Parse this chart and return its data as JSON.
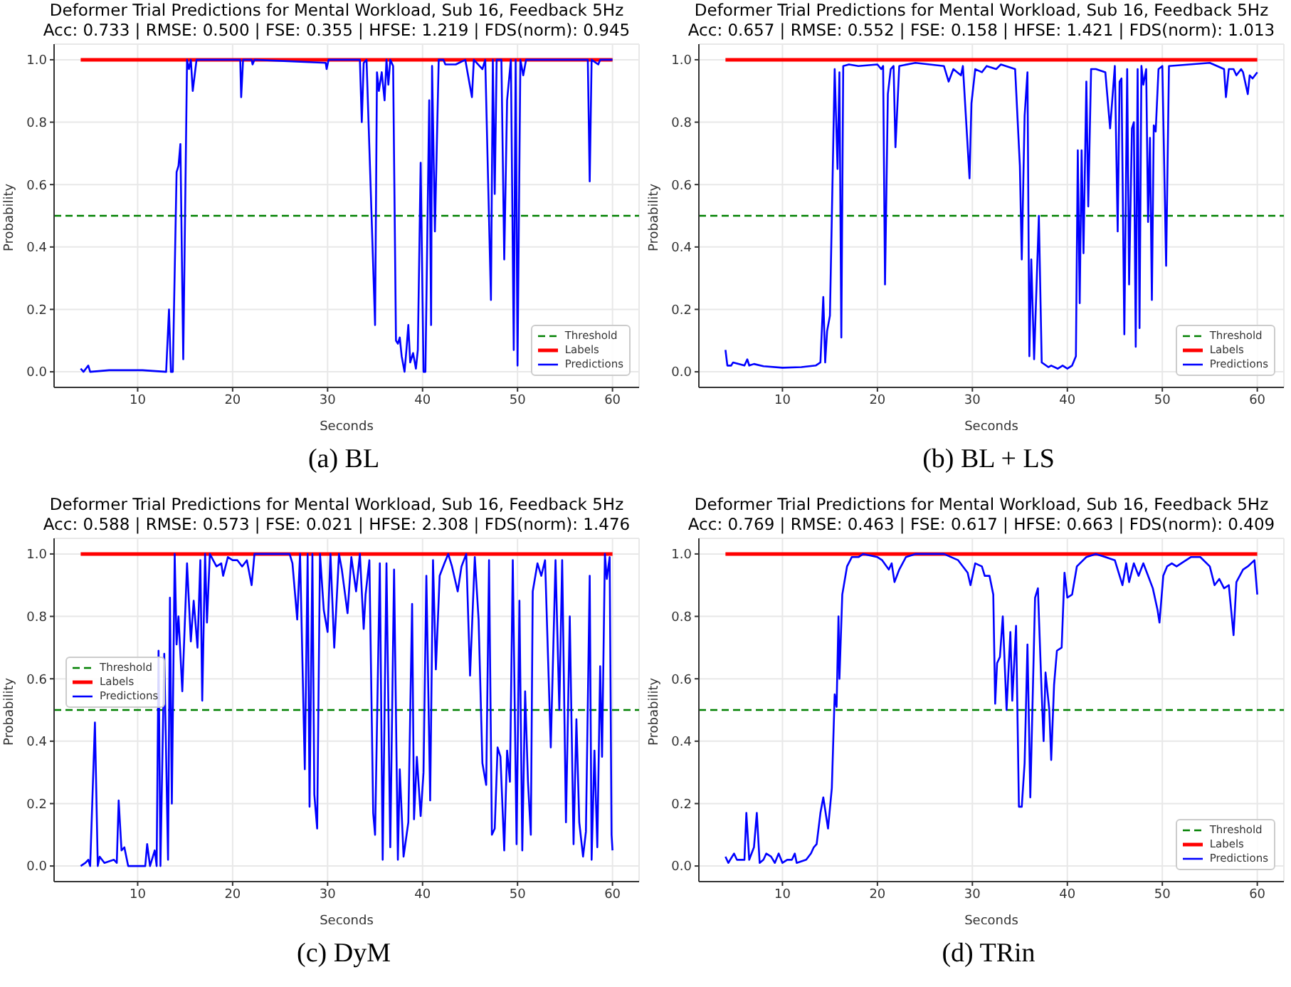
{
  "chart_data": [
    {
      "type": "line",
      "title": "Deformer Trial Predictions for Mental Workload, Sub 16, Feedback 5Hz",
      "subtitle": "Acc: 0.733 | RMSE: 0.500 | FSE: 0.355 | HFSE: 1.219 | FDS(norm): 0.945",
      "xlabel": "Seconds",
      "ylabel": "Probability",
      "annotations": [
        "(a) BL"
      ],
      "xlim": [
        1.2,
        62.8
      ],
      "xticks": [
        10,
        20,
        30,
        40,
        50,
        60
      ],
      "ylim": [
        -0.05,
        1.05
      ],
      "yticks": [
        {
          "value": 0,
          "label": "0.0"
        },
        {
          "value": 0.2,
          "label": "0.2"
        },
        {
          "value": 0.4,
          "label": "0.4"
        },
        {
          "value": 0.6,
          "label": "0.6"
        },
        {
          "value": 0.8,
          "label": "0.8"
        },
        {
          "value": 1,
          "label": "1.0"
        }
      ],
      "grid": true,
      "legend": "bottom right",
      "ref_lines": [
        {
          "axis": "y",
          "value": 0.5,
          "label": "Threshold",
          "color": "#008000",
          "line_style": "dashed"
        }
      ],
      "series": [
        {
          "name": "Labels",
          "color": "#ff0000",
          "x": [
            4,
            60
          ],
          "values": [
            1,
            1
          ]
        },
        {
          "name": "Predictions",
          "color": "#0000ff",
          "x": [
            4.0,
            4.3,
            4.8,
            5.0,
            7,
            10.5,
            13.0,
            13.3,
            13.5,
            13.7,
            14.1,
            14.3,
            14.5,
            14.8,
            15.2,
            15.4,
            15.6,
            15.8,
            16.2,
            20.8,
            20.9,
            21.1,
            22,
            22.1,
            22.3,
            29.8,
            29.9,
            30.1,
            33.4,
            33.6,
            33.8,
            34.1,
            35.0,
            35.2,
            35.4,
            35.7,
            36.0,
            36.2,
            36.4,
            36.6,
            36.9,
            37.2,
            37.4,
            37.6,
            37.8,
            38.1,
            38.3,
            38.5,
            38.7,
            39.0,
            39.3,
            39.5,
            39.8,
            40.1,
            40.3,
            40.7,
            40.9,
            41.0,
            41.3,
            41.7,
            42.2,
            42.4,
            43.5,
            44.5,
            45.2,
            45.4,
            46.3,
            46.6,
            47.2,
            47.4,
            47.6,
            47.8,
            48.3,
            48.6,
            48.9,
            49.3,
            49.6,
            49.8,
            50.0,
            50.3,
            50.6,
            50.9,
            57.4,
            57.6,
            57.8,
            58.5,
            58.7,
            60.0
          ],
          "values": [
            0.01,
            0.0,
            0.02,
            0.0,
            0.005,
            0.005,
            0.0,
            0.2,
            0.0,
            0.0,
            0.64,
            0.66,
            0.73,
            0.04,
            1.0,
            0.97,
            1.0,
            0.9,
            1.0,
            1.0,
            0.88,
            1.0,
            1.0,
            0.985,
            1.0,
            0.99,
            0.97,
            1.0,
            1.0,
            0.8,
            0.99,
            1.0,
            0.15,
            0.96,
            0.9,
            0.96,
            0.87,
            1.0,
            0.92,
            1.0,
            0.98,
            0.1,
            0.09,
            0.11,
            0.05,
            0.0,
            0.07,
            0.15,
            0.03,
            0.06,
            0.01,
            0.07,
            0.67,
            0.0,
            0.0,
            0.87,
            0.15,
            0.98,
            0.45,
            1.0,
            1.0,
            0.985,
            0.985,
            1.0,
            0.88,
            1.0,
            0.97,
            1.0,
            0.23,
            1.0,
            0.57,
            1.0,
            1.0,
            0.36,
            0.87,
            1.0,
            0.07,
            1.0,
            0.02,
            1.0,
            0.95,
            1.0,
            1.0,
            0.61,
            1.0,
            0.985,
            1.0,
            1.0
          ]
        }
      ]
    },
    {
      "type": "line",
      "title": "Deformer Trial Predictions for Mental Workload, Sub 16, Feedback 5Hz",
      "subtitle": "Acc: 0.657 | RMSE: 0.552 | FSE: 0.158 | HFSE: 1.421 | FDS(norm): 1.013",
      "xlabel": "Seconds",
      "ylabel": "Probability",
      "annotations": [
        "(b) BL + LS"
      ],
      "xlim": [
        1.2,
        62.8
      ],
      "xticks": [
        10,
        20,
        30,
        40,
        50,
        60
      ],
      "ylim": [
        -0.05,
        1.05
      ],
      "yticks": [
        {
          "value": 0,
          "label": "0.0"
        },
        {
          "value": 0.2,
          "label": "0.2"
        },
        {
          "value": 0.4,
          "label": "0.4"
        },
        {
          "value": 0.6,
          "label": "0.6"
        },
        {
          "value": 0.8,
          "label": "0.8"
        },
        {
          "value": 1,
          "label": "1.0"
        }
      ],
      "grid": true,
      "legend": "bottom right",
      "ref_lines": [
        {
          "axis": "y",
          "value": 0.5,
          "label": "Threshold",
          "color": "#008000",
          "line_style": "dashed"
        }
      ],
      "series": [
        {
          "name": "Labels",
          "color": "#ff0000",
          "x": [
            4,
            60
          ],
          "values": [
            1,
            1
          ]
        },
        {
          "name": "Predictions",
          "color": "#0000ff",
          "x": [
            4.0,
            4.2,
            4.6,
            4.8,
            6.0,
            6.3,
            6.5,
            7,
            8,
            10,
            12,
            13.5,
            14.0,
            14.3,
            14.5,
            14.7,
            15.0,
            15.5,
            15.8,
            16.0,
            16.2,
            16.4,
            17,
            18,
            20,
            20.4,
            20.6,
            20.8,
            21.1,
            21.4,
            21.7,
            21.9,
            22.3,
            24,
            27,
            27.5,
            28,
            28.4,
            28.8,
            29.0,
            29.7,
            29.9,
            30.3,
            31,
            31.5,
            32.5,
            33,
            34.5,
            35.0,
            35.2,
            35.5,
            35.8,
            36.0,
            36.2,
            36.5,
            37.0,
            37.3,
            38,
            38.3,
            39,
            39.5,
            40,
            40.5,
            40.9,
            41.1,
            41.3,
            41.5,
            41.7,
            42.0,
            42.2,
            42.5,
            43,
            44,
            44.5,
            45,
            45.3,
            45.5,
            45.7,
            46.0,
            46.3,
            46.5,
            46.8,
            47.0,
            47.2,
            47.4,
            47.6,
            47.8,
            48,
            48.3,
            48.5,
            48.7,
            48.9,
            49.1,
            49.3,
            49.6,
            50,
            50.4,
            50.7,
            55,
            56.5,
            56.7,
            57,
            57.5,
            57.8,
            58.3,
            58.5,
            59.0,
            59.2,
            59.5,
            60
          ],
          "values": [
            0.07,
            0.02,
            0.02,
            0.03,
            0.02,
            0.04,
            0.02,
            0.025,
            0.018,
            0.013,
            0.015,
            0.02,
            0.03,
            0.24,
            0.03,
            0.13,
            0.18,
            0.97,
            0.65,
            0.96,
            0.11,
            0.98,
            0.985,
            0.98,
            0.985,
            0.97,
            0.98,
            0.28,
            0.89,
            0.97,
            0.98,
            0.72,
            0.98,
            0.99,
            0.98,
            0.93,
            0.97,
            0.96,
            0.95,
            0.98,
            0.62,
            0.86,
            0.97,
            0.96,
            0.98,
            0.97,
            0.985,
            0.97,
            0.66,
            0.36,
            0.82,
            0.96,
            0.05,
            0.36,
            0.04,
            0.5,
            0.03,
            0.015,
            0.02,
            0.01,
            0.02,
            0.01,
            0.02,
            0.05,
            0.71,
            0.22,
            0.71,
            0.38,
            0.93,
            0.53,
            0.97,
            0.97,
            0.96,
            0.78,
            0.98,
            0.45,
            0.93,
            0.94,
            0.12,
            0.97,
            0.28,
            0.78,
            0.8,
            0.08,
            0.97,
            0.14,
            0.98,
            0.92,
            0.97,
            0.48,
            0.75,
            0.23,
            0.79,
            0.77,
            0.97,
            0.98,
            0.34,
            0.98,
            0.99,
            0.97,
            0.88,
            0.97,
            0.97,
            0.95,
            0.97,
            0.96,
            0.89,
            0.95,
            0.94,
            0.96
          ]
        }
      ]
    },
    {
      "type": "line",
      "title": "Deformer Trial Predictions for Mental Workload, Sub 16, Feedback 5Hz",
      "subtitle": "Acc: 0.588 | RMSE: 0.573 | FSE: 0.021 | HFSE: 2.308 | FDS(norm): 1.476",
      "xlabel": "Seconds",
      "ylabel": "Probability",
      "annotations": [
        "(c) DyM"
      ],
      "xlim": [
        1.2,
        62.8
      ],
      "xticks": [
        10,
        20,
        30,
        40,
        50,
        60
      ],
      "ylim": [
        -0.05,
        1.05
      ],
      "yticks": [
        {
          "value": 0,
          "label": "0.0"
        },
        {
          "value": 0.2,
          "label": "0.2"
        },
        {
          "value": 0.4,
          "label": "0.4"
        },
        {
          "value": 0.6,
          "label": "0.6"
        },
        {
          "value": 0.8,
          "label": "0.8"
        },
        {
          "value": 1,
          "label": "1.0"
        }
      ],
      "grid": true,
      "legend": "center left",
      "ref_lines": [
        {
          "axis": "y",
          "value": 0.5,
          "label": "Threshold",
          "color": "#008000",
          "line_style": "dashed"
        }
      ],
      "series": [
        {
          "name": "Labels",
          "color": "#ff0000",
          "x": [
            4,
            60
          ],
          "values": [
            1,
            1
          ]
        },
        {
          "name": "Predictions",
          "color": "#0000ff",
          "x": [
            4.0,
            4.5,
            4.8,
            5.0,
            5.5,
            5.8,
            6.0,
            6.5,
            7.5,
            7.8,
            8.0,
            8.3,
            8.6,
            9.0,
            10.8,
            11.0,
            11.3,
            11.8,
            12.0,
            12.2,
            12.4,
            12.8,
            13.2,
            13.4,
            13.6,
            13.9,
            14.1,
            14.3,
            14.7,
            15.2,
            15.6,
            15.9,
            16.3,
            16.6,
            16.8,
            17.1,
            17.3,
            17.6,
            18.3,
            18.8,
            19.0,
            19.5,
            20,
            20.5,
            21,
            21.5,
            22.0,
            22.3,
            26.0,
            26.3,
            26.8,
            27.1,
            27.6,
            27.9,
            28.1,
            28.4,
            28.6,
            28.9,
            29.2,
            29.6,
            30.0,
            30.3,
            30.7,
            31.2,
            31.5,
            32.1,
            32.5,
            33.0,
            33.4,
            33.8,
            34.0,
            34.4,
            34.8,
            35.0,
            35.5,
            35.8,
            36.2,
            36.6,
            37.0,
            37.4,
            37.6,
            38.0,
            38.5,
            38.9,
            39.1,
            39.4,
            39.8,
            40.1,
            40.4,
            40.8,
            41.1,
            41.4,
            41.8,
            42.3,
            42.7,
            43.1,
            43.7,
            44.1,
            44.6,
            45.0,
            45.5,
            45.9,
            46.3,
            46.7,
            47.0,
            47.3,
            47.6,
            47.9,
            48.2,
            48.6,
            48.9,
            49.2,
            49.5,
            49.9,
            50.2,
            50.5,
            50.8,
            51.1,
            51.4,
            51.6,
            52.1,
            52.5,
            52.9,
            53.5,
            54.0,
            54.4,
            54.7,
            55.1,
            55.5,
            55.9,
            56.2,
            56.5,
            56.9,
            57.2,
            57.6,
            57.8,
            58.1,
            58.4,
            58.7,
            58.9,
            59.2,
            59.4,
            59.7,
            59.9,
            60.0
          ],
          "values": [
            0.0,
            0.01,
            0.02,
            0.0,
            0.46,
            0.0,
            0.03,
            0.01,
            0.02,
            0.01,
            0.21,
            0.05,
            0.06,
            0.0,
            0.0,
            0.07,
            0.0,
            0.05,
            0.0,
            0.69,
            0.0,
            0.68,
            0.02,
            0.86,
            0.2,
            1.0,
            0.71,
            0.8,
            0.56,
            0.97,
            0.72,
            0.85,
            0.7,
            0.98,
            0.53,
            1.0,
            0.78,
            1.0,
            0.96,
            0.97,
            0.93,
            0.99,
            0.98,
            0.98,
            0.96,
            0.98,
            0.9,
            1.0,
            1.0,
            0.97,
            0.79,
            1.0,
            0.31,
            1.0,
            0.19,
            1.0,
            0.23,
            0.12,
            1.0,
            0.82,
            0.75,
            1.0,
            0.7,
            1.0,
            0.95,
            0.81,
            0.99,
            0.88,
            1.0,
            0.76,
            0.87,
            0.98,
            0.17,
            0.1,
            0.97,
            0.02,
            0.97,
            0.06,
            0.95,
            0.02,
            0.31,
            0.03,
            0.14,
            0.84,
            0.15,
            0.35,
            0.16,
            0.3,
            0.93,
            0.21,
            0.98,
            0.63,
            0.93,
            0.97,
            1.0,
            0.96,
            0.88,
            0.96,
            1.0,
            0.61,
            0.99,
            0.79,
            0.33,
            0.26,
            0.98,
            0.1,
            0.12,
            0.38,
            0.35,
            0.05,
            0.37,
            0.27,
            0.98,
            0.07,
            0.85,
            0.05,
            0.56,
            0.27,
            0.1,
            0.88,
            0.97,
            0.93,
            0.98,
            0.38,
            0.98,
            0.5,
            0.98,
            0.14,
            0.8,
            0.07,
            0.47,
            0.14,
            0.03,
            0.11,
            0.93,
            0.02,
            0.37,
            0.06,
            0.64,
            0.35,
            1.0,
            0.92,
            0.99,
            0.1,
            0.05
          ]
        }
      ]
    },
    {
      "type": "line",
      "title": "Deformer Trial Predictions for Mental Workload, Sub 16, Feedback 5Hz",
      "subtitle": "Acc: 0.769 | RMSE: 0.463 | FSE: 0.617 | HFSE: 0.663 | FDS(norm): 0.409",
      "xlabel": "Seconds",
      "ylabel": "Probability",
      "annotations": [
        "(d) TRin"
      ],
      "xlim": [
        1.2,
        62.8
      ],
      "xticks": [
        10,
        20,
        30,
        40,
        50,
        60
      ],
      "ylim": [
        -0.05,
        1.05
      ],
      "yticks": [
        {
          "value": 0,
          "label": "0.0"
        },
        {
          "value": 0.2,
          "label": "0.2"
        },
        {
          "value": 0.4,
          "label": "0.4"
        },
        {
          "value": 0.6,
          "label": "0.6"
        },
        {
          "value": 0.8,
          "label": "0.8"
        },
        {
          "value": 1,
          "label": "1.0"
        }
      ],
      "grid": true,
      "legend": "bottom right",
      "ref_lines": [
        {
          "axis": "y",
          "value": 0.5,
          "label": "Threshold",
          "color": "#008000",
          "line_style": "dashed"
        }
      ],
      "series": [
        {
          "name": "Labels",
          "color": "#ff0000",
          "x": [
            4,
            60
          ],
          "values": [
            1,
            1
          ]
        },
        {
          "name": "Predictions",
          "color": "#0000ff",
          "x": [
            4.0,
            4.3,
            4.9,
            5.2,
            6.0,
            6.2,
            6.5,
            7.0,
            7.3,
            7.6,
            8.0,
            8.3,
            8.8,
            9.2,
            9.6,
            10.0,
            10.5,
            11.0,
            11.3,
            11.5,
            12.5,
            13.0,
            13.3,
            13.6,
            14.0,
            14.3,
            14.8,
            15.2,
            15.5,
            15.7,
            15.9,
            16.0,
            16.3,
            16.8,
            17.3,
            18,
            18.5,
            20,
            20.5,
            21.2,
            21.5,
            21.8,
            22.3,
            23,
            24,
            27,
            28.5,
            29.5,
            29.8,
            30.3,
            31,
            31.3,
            31.8,
            32.2,
            32.4,
            32.6,
            32.9,
            33.2,
            33.6,
            34.0,
            34.2,
            34.6,
            34.9,
            35.2,
            35.5,
            35.8,
            36.1,
            36.6,
            36.9,
            37.3,
            37.5,
            37.7,
            38.1,
            38.3,
            38.6,
            38.9,
            39.4,
            39.7,
            40.0,
            40.5,
            41.0,
            42,
            43,
            44,
            45,
            45.8,
            46.2,
            46.5,
            47,
            47.5,
            48,
            48.5,
            49,
            49.5,
            49.7,
            50.1,
            50.5,
            51,
            51.5,
            52.5,
            53,
            54,
            55,
            55.5,
            56,
            56.5,
            57,
            57.5,
            57.8,
            58.5,
            59,
            59.7,
            60.0
          ],
          "values": [
            0.03,
            0.01,
            0.04,
            0.02,
            0.02,
            0.17,
            0.02,
            0.06,
            0.17,
            0.01,
            0.02,
            0.04,
            0.03,
            0.01,
            0.04,
            0.01,
            0.02,
            0.02,
            0.04,
            0.01,
            0.02,
            0.04,
            0.06,
            0.07,
            0.17,
            0.22,
            0.12,
            0.25,
            0.55,
            0.51,
            0.8,
            0.6,
            0.87,
            0.96,
            0.99,
            0.99,
            1.0,
            0.99,
            0.98,
            0.95,
            0.97,
            0.91,
            0.95,
            0.99,
            1.0,
            1.0,
            0.98,
            0.94,
            0.9,
            0.97,
            0.96,
            0.93,
            0.93,
            0.87,
            0.52,
            0.65,
            0.67,
            0.8,
            0.5,
            0.75,
            0.53,
            0.77,
            0.19,
            0.19,
            0.33,
            0.71,
            0.22,
            0.86,
            0.89,
            0.55,
            0.4,
            0.62,
            0.5,
            0.34,
            0.58,
            0.69,
            0.7,
            0.94,
            0.86,
            0.87,
            0.96,
            0.99,
            1.0,
            0.99,
            0.98,
            0.9,
            0.97,
            0.91,
            0.97,
            0.93,
            0.97,
            0.93,
            0.89,
            0.82,
            0.78,
            0.93,
            0.96,
            0.97,
            0.96,
            0.98,
            0.99,
            0.99,
            0.96,
            0.9,
            0.92,
            0.89,
            0.9,
            0.74,
            0.91,
            0.95,
            0.96,
            0.98,
            0.87
          ]
        }
      ]
    }
  ]
}
